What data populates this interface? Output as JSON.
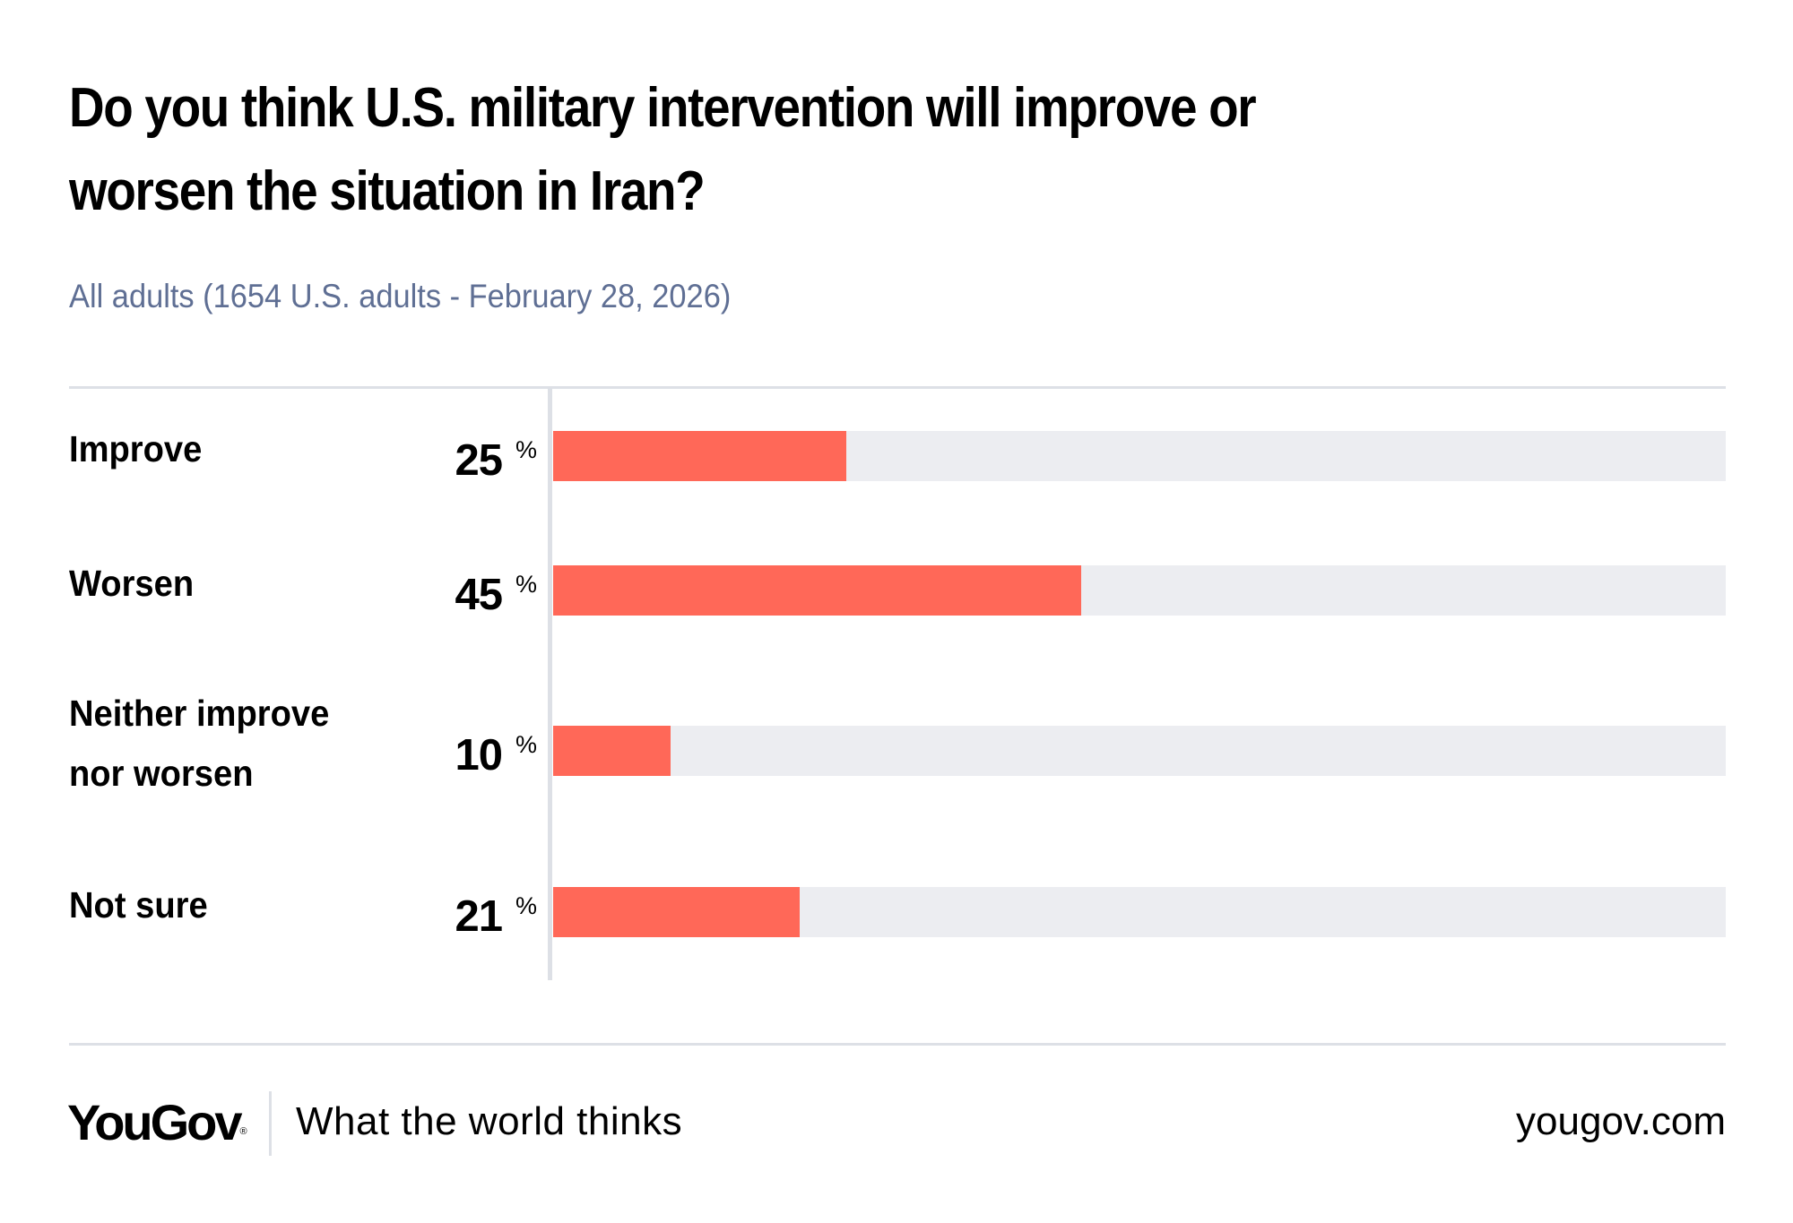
{
  "header": {
    "title_lines": [
      "Do you think U.S. military intervention will improve or",
      "worsen the situation in Iran?"
    ],
    "subtitle": "All adults (1654 U.S. adults - February 28, 2026)"
  },
  "colors": {
    "bar": "#ff6858",
    "track": "#ecedf1",
    "subtitle": "#5f6f94",
    "divider": "#dde0e6"
  },
  "chart_data": {
    "type": "bar",
    "orientation": "horizontal",
    "title": "Do you think U.S. military intervention will improve or worsen the situation in Iran?",
    "subtitle": "All adults (1654 U.S. adults - February 28, 2026)",
    "categories": [
      [
        "Improve"
      ],
      [
        "Worsen"
      ],
      [
        "Neither improve",
        "nor worsen"
      ],
      [
        "Not sure"
      ]
    ],
    "category_names": [
      "Improve",
      "Worsen",
      "Neither improve nor worsen",
      "Not sure"
    ],
    "values": [
      25,
      45,
      10,
      21
    ],
    "unit": "%",
    "xlim": [
      0,
      100
    ],
    "xlabel": "",
    "ylabel": "",
    "grid": false,
    "legend": "none"
  },
  "footer": {
    "logo": "YouGov",
    "logo_mark": "®",
    "tagline": "What the world thinks",
    "site": "yougov.com"
  }
}
